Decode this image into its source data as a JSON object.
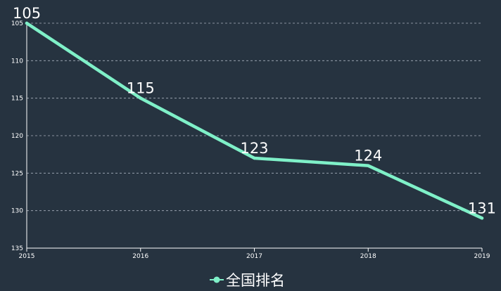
{
  "chart_data": {
    "type": "line",
    "x": [
      "2015",
      "2016",
      "2017",
      "2018",
      "2019"
    ],
    "series": [
      {
        "name": "全国排名",
        "values": [
          105,
          115,
          123,
          124,
          131
        ]
      }
    ],
    "data_labels": [
      "105",
      "115",
      "123",
      "124",
      "131"
    ],
    "yticks": [
      105,
      110,
      115,
      120,
      125,
      130,
      135
    ],
    "ylim": [
      105,
      135
    ],
    "y_inverted": true,
    "grid": true,
    "grid_style": "dashed horizontal",
    "legend_position": "bottom-center",
    "colors": {
      "background": "#263340",
      "series": "#7ff0c8",
      "grid": "#a9b2bd",
      "axis": "#ffffff",
      "text": "#ffffff"
    }
  }
}
